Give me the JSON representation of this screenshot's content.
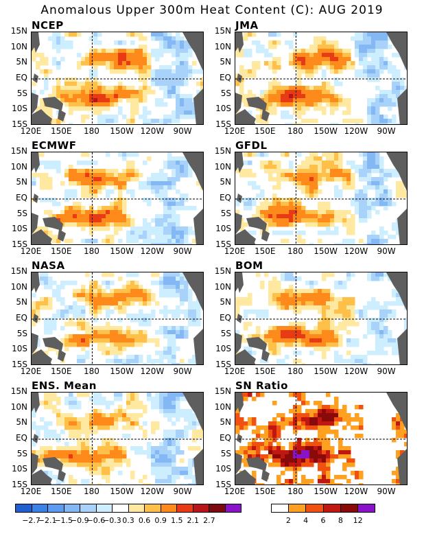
{
  "title": "Anomalous Upper 300m Heat Content (C): AUG 2019",
  "lat_labels": [
    "15N",
    "10N",
    "5N",
    "EQ",
    "5S",
    "10S",
    "15S"
  ],
  "lon_labels": [
    "120E",
    "150E",
    "180",
    "150W",
    "120W",
    "90W"
  ],
  "panels": [
    {
      "name": "NCEP"
    },
    {
      "name": "JMA"
    },
    {
      "name": "ECMWF"
    },
    {
      "name": "GFDL"
    },
    {
      "name": "NASA"
    },
    {
      "name": "BOM"
    },
    {
      "name": "ENS. Mean"
    },
    {
      "name": "SN Ratio"
    }
  ],
  "colorbar_anomaly": {
    "labels": [
      "−2.7",
      "−2.1",
      "−1.5",
      "−0.9",
      "−0.6",
      "−0.3",
      "0.3",
      "0.6",
      "0.9",
      "1.5",
      "2.1",
      "2.7"
    ],
    "colors": [
      "#1f5fd0",
      "#3b82e6",
      "#5b9cf0",
      "#83b8f5",
      "#a9d2fa",
      "#cceefe",
      "#ffffff",
      "#ffe9a0",
      "#ffc04a",
      "#ff8a1c",
      "#e83a14",
      "#b8141c",
      "#7c0a10",
      "#8a12c8"
    ]
  },
  "colorbar_sn": {
    "labels": [
      "2",
      "4",
      "6",
      "8",
      "12"
    ],
    "colors": [
      "#ffffff",
      "#ffa020",
      "#f05010",
      "#c01810",
      "#8a0a0a",
      "#8a12c8"
    ]
  },
  "colors": {
    "land": "#5e5e5e",
    "grid": "#000000"
  }
}
